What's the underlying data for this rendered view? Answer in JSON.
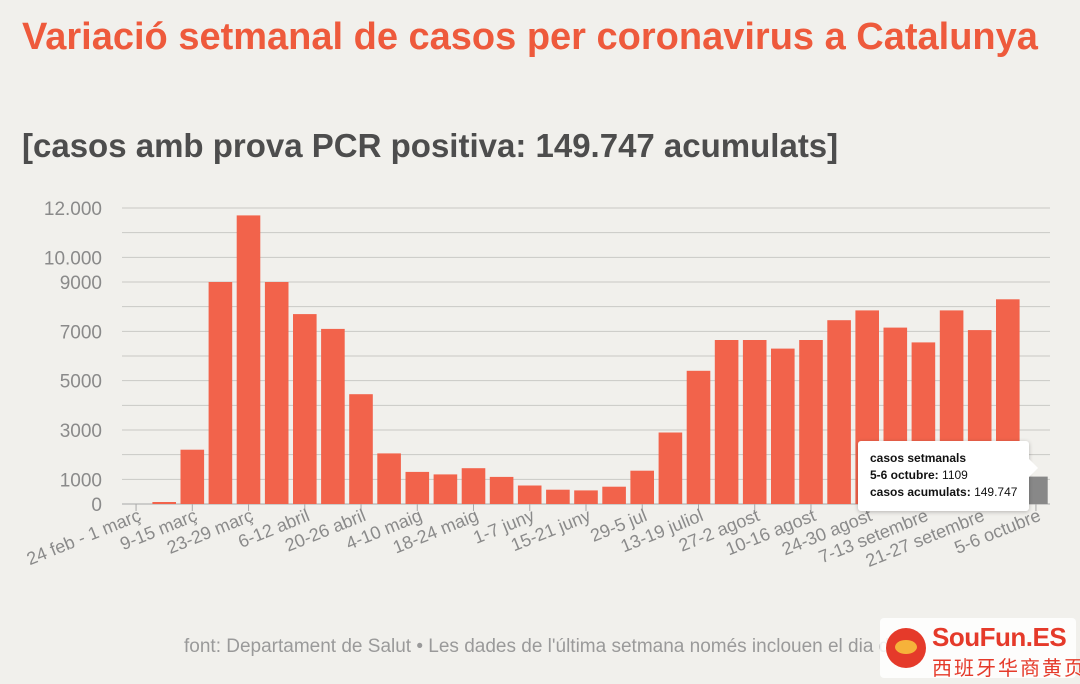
{
  "header": {
    "title": "Variació setmanal de casos per coronavirus a Catalunya",
    "subtitle": "[casos amb prova PCR positiva: 149.747 acumulats]"
  },
  "chart_data": {
    "type": "bar",
    "title": "Variació setmanal de casos per coronavirus a Catalunya",
    "subtitle": "[casos amb prova PCR positiva: 149.747 acumulats]",
    "xlabel": "",
    "ylabel": "",
    "ylim": [
      0,
      12000
    ],
    "y_ticks": [
      0,
      1000,
      3000,
      5000,
      7000,
      9000,
      10000,
      12000
    ],
    "y_tick_labels": [
      "0",
      "1000",
      "3000",
      "5000",
      "7000",
      "9000",
      "10.000",
      "12.000"
    ],
    "grid": true,
    "x_tick_labels": [
      "24 feb - 1 març",
      "9-15 març",
      "23-29 març",
      "6-12 abril",
      "20-26 abril",
      "4-10 maig",
      "18-24 maig",
      "1-7 juny",
      "15-21 juny",
      "29-5 jul",
      "13-19 juliol",
      "27-2 agost",
      "10-16 agost",
      "24-30 agost",
      "7-13 setembre",
      "21-27 setembre",
      "5-6 octubre"
    ],
    "values": [
      0,
      80,
      2200,
      9000,
      11700,
      9000,
      7700,
      7100,
      4450,
      2050,
      1300,
      1200,
      1450,
      1100,
      750,
      580,
      550,
      700,
      1350,
      2900,
      5400,
      6650,
      6650,
      6300,
      6650,
      7450,
      7850,
      7150,
      6550,
      7850,
      7050,
      8300,
      1109
    ],
    "bar_colors": {
      "default": "#f2634b",
      "highlight": "#888888"
    },
    "highlight_index": 32
  },
  "tooltip": {
    "label": "casos setmanals",
    "week_label": "5-6 octubre:",
    "week_value": "1109",
    "cumulative_label": "casos acumulats:",
    "cumulative_value": "149.747"
  },
  "footer": {
    "source": "font: Departament de Salut • Les dades de l'última setmana només inclouen el dia d'ahir"
  },
  "watermark": {
    "brand": "SouFun.ES",
    "tagline": "西班牙华商黄页"
  }
}
